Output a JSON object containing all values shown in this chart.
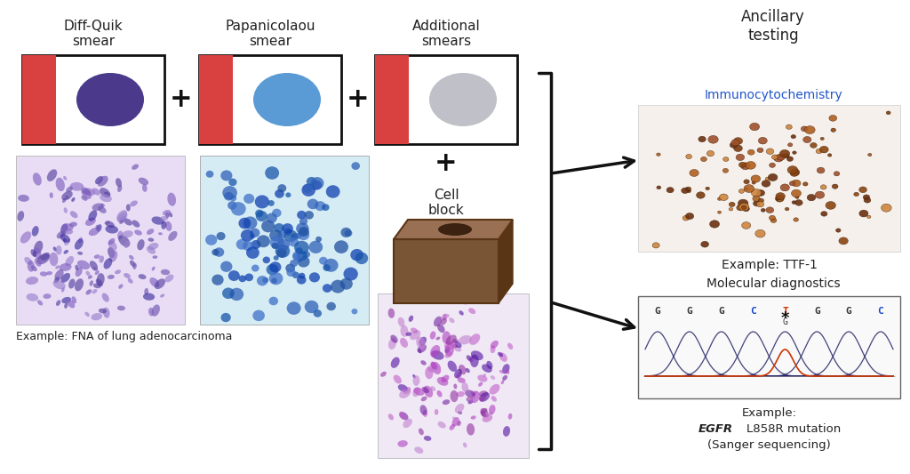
{
  "bg_color": "#ffffff",
  "label1": "Diff-Quik\nsmear",
  "label2": "Papanicolaou\nsmear",
  "label3": "Additional\nsmears",
  "label4": "Ancillary\ntesting",
  "label_cell_block": "Cell\nblock",
  "label_immuno": "Immunocytochemistry",
  "label_ttf1": "Example: TTF-1",
  "label_mol": "Molecular diagnostics",
  "label_fna": "Example: FNA of lung adenocarcinoma",
  "oval1_color": "#4B3A8C",
  "oval2_color": "#5B9BD5",
  "oval3_color": "#C0C0C8",
  "slide_red": "#D94040",
  "slide_bg": "#FFFFFF",
  "slide_border": "#111111",
  "seq_letters": [
    "G",
    "G",
    "G",
    "C",
    "T",
    "G",
    "G",
    "C"
  ],
  "seq_subletter": "G",
  "seq_letter_colors": [
    "#333333",
    "#333333",
    "#333333",
    "#1144CC",
    "#CC3300",
    "#333333",
    "#333333",
    "#1144CC"
  ],
  "arrow_color": "#111111",
  "bracket_color": "#111111",
  "seq_wave_color": "#222266",
  "seq_mut_color": "#CC3300",
  "font_color_main": "#222222",
  "font_color_immuno": "#2255CC",
  "font_color_mol": "#222222",
  "immuno_bg": "#f5f0eb",
  "seq_bg": "#f9f9f9",
  "photo1_bg": "#e8e0f0",
  "photo2_bg": "#d8e8f4",
  "photo3_bg": "#ede0ed",
  "cell_block_color": "#7a5535",
  "cell_block_top": "#9a7055",
  "cell_block_side": "#5a3515"
}
